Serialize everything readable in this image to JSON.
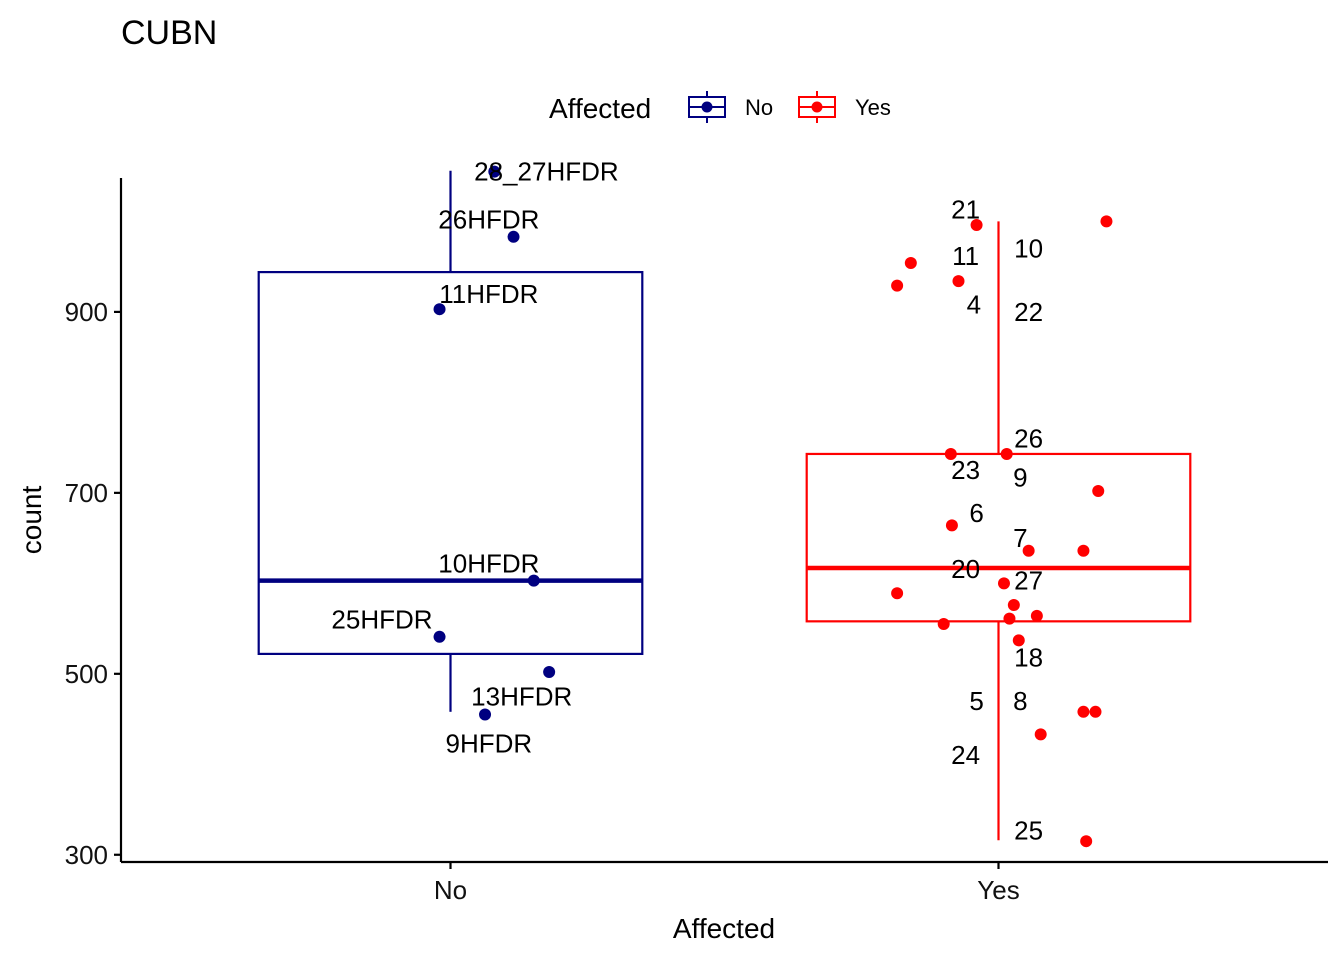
{
  "chart_data": {
    "type": "boxplot",
    "title": "CUBN",
    "xlabel": "Affected",
    "ylabel": "count",
    "ylim": [
      292,
      1048
    ],
    "yticks": [
      300,
      500,
      700,
      900
    ],
    "categories": [
      "No",
      "Yes"
    ],
    "legend": {
      "title": "Affected",
      "placement": "top",
      "entries": [
        {
          "label": "No",
          "color": "#000080"
        },
        {
          "label": "Yes",
          "color": "#ff0000"
        }
      ]
    },
    "groups": [
      {
        "name": "No",
        "color": "#000080",
        "box": {
          "whisker_low": 458,
          "q1": 522,
          "median": 603,
          "q3": 944,
          "whisker_high": 1056
        },
        "points": [
          {
            "y": 1055,
            "jitter": 0.08
          },
          {
            "y": 983,
            "jitter": 0.115
          },
          {
            "y": 903,
            "jitter": -0.02
          },
          {
            "y": 603,
            "jitter": 0.152
          },
          {
            "y": 541,
            "jitter": -0.02
          },
          {
            "y": 502,
            "jitter": 0.18
          },
          {
            "y": 455,
            "jitter": 0.063
          }
        ],
        "labels": [
          {
            "text": "28_27HFDR",
            "y": 1055,
            "offset": 0.175
          },
          {
            "text": "26HFDR",
            "y": 1002,
            "offset": 0.07
          },
          {
            "text": "11HFDR",
            "y": 920,
            "offset": 0.07
          },
          {
            "text": "10HFDR",
            "y": 622,
            "offset": 0.07
          },
          {
            "text": "25HFDR",
            "y": 560,
            "offset": -0.125
          },
          {
            "text": "13HFDR",
            "y": 475,
            "offset": 0.13
          },
          {
            "text": "9HFDR",
            "y": 423,
            "offset": 0.07
          }
        ]
      },
      {
        "name": "Yes",
        "color": "#ff0000",
        "box": {
          "whisker_low": 316,
          "q1": 558,
          "median": 617,
          "q3": 743,
          "whisker_high": 1000
        },
        "points": [
          {
            "y": 1000,
            "jitter": 0.197
          },
          {
            "y": 996,
            "jitter": -0.04
          },
          {
            "y": 954,
            "jitter": -0.16
          },
          {
            "y": 934,
            "jitter": -0.073
          },
          {
            "y": 929,
            "jitter": -0.185
          },
          {
            "y": 743,
            "jitter": -0.087
          },
          {
            "y": 743,
            "jitter": 0.015
          },
          {
            "y": 702,
            "jitter": 0.182
          },
          {
            "y": 664,
            "jitter": -0.085
          },
          {
            "y": 636,
            "jitter": 0.055
          },
          {
            "y": 636,
            "jitter": 0.155
          },
          {
            "y": 600,
            "jitter": 0.01
          },
          {
            "y": 589,
            "jitter": -0.185
          },
          {
            "y": 576,
            "jitter": 0.028
          },
          {
            "y": 564,
            "jitter": 0.07
          },
          {
            "y": 561,
            "jitter": 0.02
          },
          {
            "y": 555,
            "jitter": -0.1
          },
          {
            "y": 537,
            "jitter": 0.037
          },
          {
            "y": 458,
            "jitter": 0.155
          },
          {
            "y": 458,
            "jitter": 0.177
          },
          {
            "y": 433,
            "jitter": 0.077
          },
          {
            "y": 315,
            "jitter": 0.16
          }
        ],
        "labels": [
          {
            "text": "21",
            "y": 1013,
            "offset": -0.06
          },
          {
            "text": "10",
            "y": 970,
            "offset": 0.055
          },
          {
            "text": "11",
            "y": 962,
            "offset": -0.06
          },
          {
            "text": "4",
            "y": 908,
            "offset": -0.045
          },
          {
            "text": "22",
            "y": 900,
            "offset": 0.055
          },
          {
            "text": "26",
            "y": 760,
            "offset": 0.055
          },
          {
            "text": "23",
            "y": 725,
            "offset": -0.06
          },
          {
            "text": "9",
            "y": 717,
            "offset": 0.04
          },
          {
            "text": "6",
            "y": 678,
            "offset": -0.04
          },
          {
            "text": "7",
            "y": 650,
            "offset": 0.04
          },
          {
            "text": "20",
            "y": 616,
            "offset": -0.06
          },
          {
            "text": "27",
            "y": 603,
            "offset": 0.055
          },
          {
            "text": "18",
            "y": 518,
            "offset": 0.055
          },
          {
            "text": "5",
            "y": 470,
            "offset": -0.04
          },
          {
            "text": "8",
            "y": 470,
            "offset": 0.04
          },
          {
            "text": "24",
            "y": 410,
            "offset": -0.06
          },
          {
            "text": "25",
            "y": 327,
            "offset": 0.055
          }
        ]
      }
    ]
  }
}
